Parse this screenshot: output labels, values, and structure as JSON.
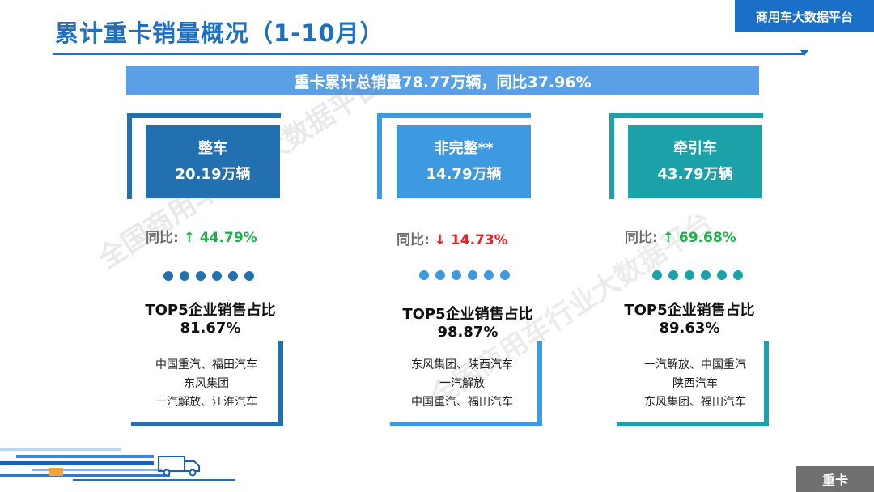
{
  "header": {
    "title": "累计重卡销量概况（1-10月）",
    "brand": "商用车大数据平台"
  },
  "banner": {
    "text": "重卡累计总销量78.77万辆，同比37.96%"
  },
  "watermark": "全国商用车行业大数据平台",
  "colors": {
    "col1": "#2270b0",
    "col2": "#3d9ae0",
    "col3": "#1aa2a8",
    "up": "#1db14b",
    "down": "#e8202a"
  },
  "columns": [
    {
      "name": "整车",
      "volume": "20.19万辆",
      "yoy_label": "同比:",
      "yoy_arrow": "↑",
      "yoy_value": "44.79%",
      "yoy_direction": "up",
      "top5_title": "TOP5企业销售占比",
      "top5_share": "81.67%",
      "companies": [
        "中国重汽、福田汽车",
        "东风集团",
        "一汽解放、江淮汽车"
      ]
    },
    {
      "name": "非完整**",
      "volume": "14.79万辆",
      "yoy_label": "同比:",
      "yoy_arrow": "↓",
      "yoy_value": "14.73%",
      "yoy_direction": "down",
      "top5_title": "TOP5企业销售占比",
      "top5_share": "98.87%",
      "companies": [
        "东风集团、陕西汽车",
        "一汽解放",
        "中国重汽、福田汽车"
      ]
    },
    {
      "name": "牵引车",
      "volume": "43.79万辆",
      "yoy_label": "同比:",
      "yoy_arrow": "↑",
      "yoy_value": "69.68%",
      "yoy_direction": "up",
      "top5_title": "TOP5企业销售占比",
      "top5_share": "89.63%",
      "companies": [
        "一汽解放、中国重汽",
        "陕西汽车",
        "东风集团、福田汽车"
      ]
    }
  ],
  "footer": {
    "tag": "重卡"
  }
}
